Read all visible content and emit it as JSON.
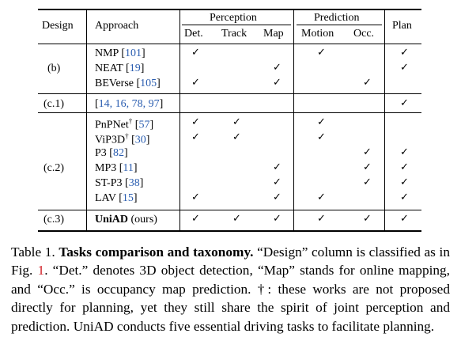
{
  "header": {
    "design": "Design",
    "approach": "Approach",
    "perception": "Perception",
    "prediction": "Prediction",
    "plan": "Plan",
    "det": "Det.",
    "track": "Track",
    "map": "Map",
    "motion": "Motion",
    "occ": "Occ."
  },
  "check": "✓",
  "groups": [
    {
      "design": "(b)",
      "rows": [
        {
          "name": "NMP",
          "dagger": "",
          "ref": "[101]",
          "det": true,
          "track": false,
          "map": false,
          "motion": true,
          "occ": false,
          "plan": true
        },
        {
          "name": "NEAT",
          "dagger": "",
          "ref": "[19]",
          "det": false,
          "track": false,
          "map": true,
          "motion": false,
          "occ": false,
          "plan": true
        },
        {
          "name": "BEVerse",
          "dagger": "",
          "ref": "[105]",
          "det": true,
          "track": false,
          "map": true,
          "motion": false,
          "occ": true,
          "plan": false
        }
      ]
    },
    {
      "design": "(c.1)",
      "rows": [
        {
          "name": "",
          "dagger": "",
          "ref": "[14, 16, 78, 97]",
          "det": false,
          "track": false,
          "map": false,
          "motion": false,
          "occ": false,
          "plan": true
        }
      ]
    },
    {
      "design": "(c.2)",
      "rows": [
        {
          "name": "PnPNet",
          "dagger": "†",
          "ref": "[57]",
          "det": true,
          "track": true,
          "map": false,
          "motion": true,
          "occ": false,
          "plan": false
        },
        {
          "name": "ViP3D",
          "dagger": "†",
          "ref": "[30]",
          "det": true,
          "track": true,
          "map": false,
          "motion": true,
          "occ": false,
          "plan": false
        },
        {
          "name": "P3",
          "dagger": "",
          "ref": "[82]",
          "det": false,
          "track": false,
          "map": false,
          "motion": false,
          "occ": true,
          "plan": true
        },
        {
          "name": "MP3",
          "dagger": "",
          "ref": "[11]",
          "det": false,
          "track": false,
          "map": true,
          "motion": false,
          "occ": true,
          "plan": true
        },
        {
          "name": "ST-P3",
          "dagger": "",
          "ref": "[38]",
          "det": false,
          "track": false,
          "map": true,
          "motion": false,
          "occ": true,
          "plan": true
        },
        {
          "name": "LAV",
          "dagger": "",
          "ref": "[15]",
          "det": true,
          "track": false,
          "map": true,
          "motion": true,
          "occ": false,
          "plan": true
        }
      ]
    },
    {
      "design": "(c.3)",
      "rows": [
        {
          "name": "UniAD",
          "dagger": "",
          "ref": "(ours)",
          "det": true,
          "track": true,
          "map": true,
          "motion": true,
          "occ": true,
          "plan": true
        }
      ]
    }
  ],
  "caption": {
    "label": "Table 1.",
    "bold_title": "Tasks comparison and taxonomy.",
    "text_1": "“Design” column is classified as in Fig.",
    "fig_num": "1",
    "text_2": ". “Det.” denotes 3D object detection, “Map” stands for online mapping, and “Occ.” is occupancy map prediction. †: these works are not proposed directly for planning, yet they still share the spirit of joint perception and prediction. UniAD conducts five essential driving tasks to facilitate planning."
  }
}
